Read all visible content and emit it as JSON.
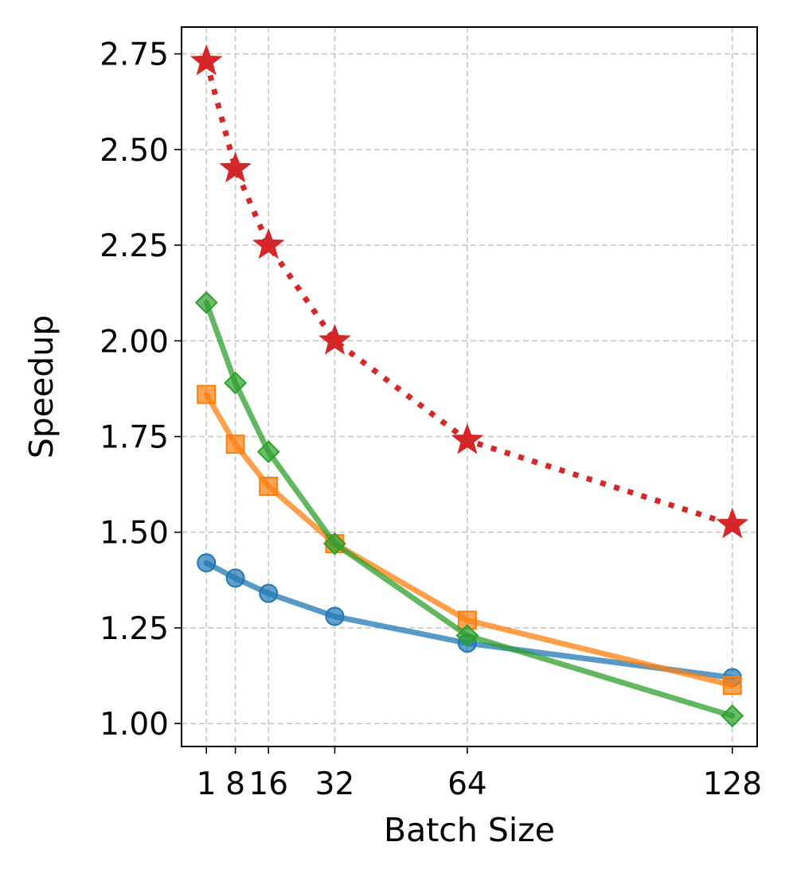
{
  "chart_data": {
    "type": "line",
    "title": "",
    "xlabel": "Batch Size",
    "ylabel": "Speedup",
    "x": [
      1,
      8,
      16,
      32,
      64,
      128
    ],
    "x_tick_labels": [
      "1",
      "8",
      "16",
      "32",
      "64",
      "128"
    ],
    "xlim": [
      -5,
      134
    ],
    "ylim": [
      0.94,
      2.82
    ],
    "y_ticks": [
      1.0,
      1.25,
      1.5,
      1.75,
      2.0,
      2.25,
      2.5,
      2.75
    ],
    "y_tick_labels": [
      "1.00",
      "1.25",
      "1.50",
      "1.75",
      "2.00",
      "2.25",
      "2.50",
      "2.75"
    ],
    "grid": true,
    "legend": "none",
    "series": [
      {
        "name": "blue",
        "color": "#1f77b4",
        "marker": "circle",
        "line_style": "solid",
        "values": [
          1.42,
          1.38,
          1.34,
          1.28,
          1.21,
          1.12
        ]
      },
      {
        "name": "orange",
        "color": "#ff7f0e",
        "marker": "square",
        "line_style": "solid",
        "values": [
          1.86,
          1.73,
          1.62,
          1.47,
          1.27,
          1.1
        ]
      },
      {
        "name": "green",
        "color": "#2ca02c",
        "marker": "diamond",
        "line_style": "solid",
        "values": [
          2.1,
          1.89,
          1.71,
          1.47,
          1.23,
          1.02
        ]
      },
      {
        "name": "red",
        "color": "#d62728",
        "marker": "star",
        "line_style": "dotted",
        "values": [
          2.73,
          2.45,
          2.25,
          2.0,
          1.74,
          1.52
        ]
      }
    ]
  }
}
